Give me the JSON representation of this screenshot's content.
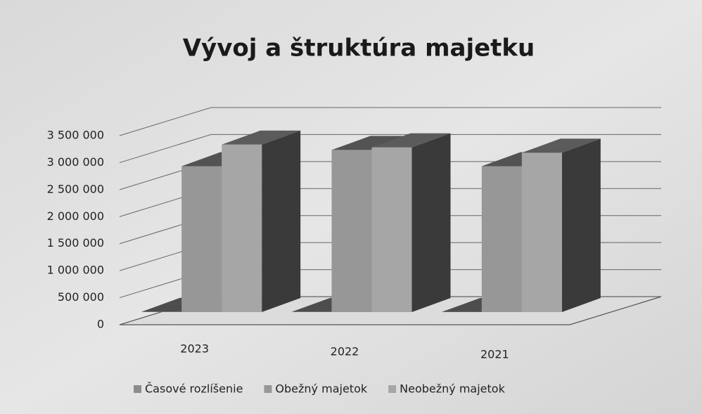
{
  "chart_data": {
    "type": "bar3d",
    "title": "Vývoj a štruktúra majetku",
    "categories": [
      "2023",
      "2022",
      "2021"
    ],
    "series": [
      {
        "name": "Časové rozlíšenie",
        "color": "#8c8c8c",
        "values": [
          5000,
          3000,
          2000
        ]
      },
      {
        "name": "Obežný majetok",
        "color": "#979797",
        "values": [
          2700000,
          3000000,
          2700000
        ]
      },
      {
        "name": "Neobežný majetok",
        "color": "#a6a6a6",
        "values": [
          3100000,
          3050000,
          2950000
        ]
      }
    ],
    "ylim": [
      0,
      3500000
    ],
    "yticks": [
      0,
      {
        "value": 500000,
        "label": "500 000"
      },
      {
        "value": 1000000,
        "label": "1 000 000"
      },
      {
        "value": 1500000,
        "label": "1 500 000"
      },
      {
        "value": 2000000,
        "label": "2 000 000"
      },
      {
        "value": 2500000,
        "label": "2 500 000"
      },
      {
        "value": 3000000,
        "label": "3 000 000"
      },
      {
        "value": 3500000,
        "label": "3 500 000"
      }
    ],
    "grid": true,
    "legend": "bottom"
  }
}
